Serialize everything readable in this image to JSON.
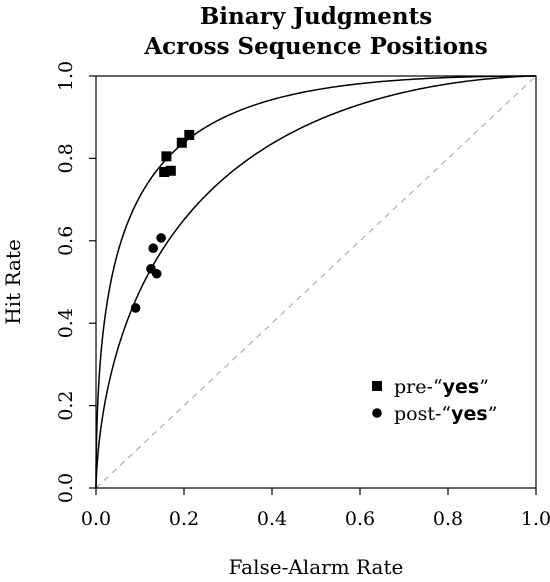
{
  "chart_data": {
    "type": "scatter",
    "title_lines": [
      "Binary Judgments",
      "Across Sequence Positions"
    ],
    "xlabel": "False-Alarm Rate",
    "ylabel": "Hit Rate",
    "xlim": [
      0,
      1
    ],
    "ylim": [
      0,
      1
    ],
    "x_ticks": [
      "0.0",
      "0.2",
      "0.4",
      "0.6",
      "0.8",
      "1.0"
    ],
    "y_ticks": [
      "0.0",
      "0.2",
      "0.4",
      "0.6",
      "0.8",
      "1.0"
    ],
    "grid": false,
    "legend_position": "bottom-right",
    "diagonal": {
      "style": "dashed",
      "color": "#b0b0b0"
    },
    "curves": [
      {
        "dprime": 1.83,
        "color": "#000000"
      },
      {
        "dprime": 1.23,
        "color": "#000000"
      }
    ],
    "series": [
      {
        "name": "pre-“yes”",
        "legend_prefix": "pre-“",
        "legend_word": "yes",
        "legend_suffix": "”",
        "marker": "square",
        "points": [
          {
            "x": 0.155,
            "y": 0.767
          },
          {
            "x": 0.16,
            "y": 0.805
          },
          {
            "x": 0.17,
            "y": 0.77
          },
          {
            "x": 0.195,
            "y": 0.838
          },
          {
            "x": 0.212,
            "y": 0.857
          }
        ]
      },
      {
        "name": "post-“yes”",
        "legend_prefix": "post-“",
        "legend_word": "yes",
        "legend_suffix": "”",
        "marker": "circle",
        "points": [
          {
            "x": 0.09,
            "y": 0.437
          },
          {
            "x": 0.125,
            "y": 0.532
          },
          {
            "x": 0.13,
            "y": 0.582
          },
          {
            "x": 0.138,
            "y": 0.52
          },
          {
            "x": 0.148,
            "y": 0.607
          }
        ]
      }
    ]
  }
}
